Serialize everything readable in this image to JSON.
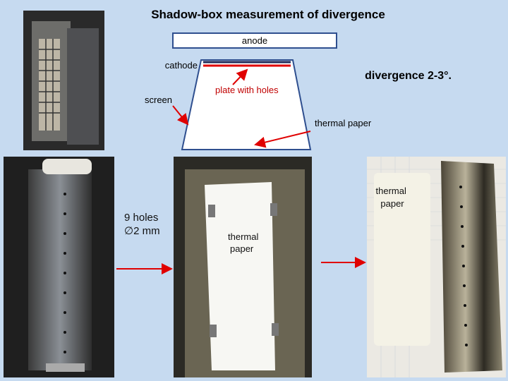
{
  "title": "Shadow-box measurement of divergence",
  "diagram": {
    "anode": "anode",
    "cathode": "cathode",
    "divergence": "divergence 2-3°.",
    "plate": "plate with holes",
    "screen": "screen",
    "thermal_paper": "thermal paper"
  },
  "photos": {
    "box_label": [
      "9 holes",
      "∅2 mm"
    ],
    "paper_label_1": [
      "thermal",
      "paper"
    ],
    "paper_label_2": [
      "thermal",
      "paper"
    ]
  }
}
